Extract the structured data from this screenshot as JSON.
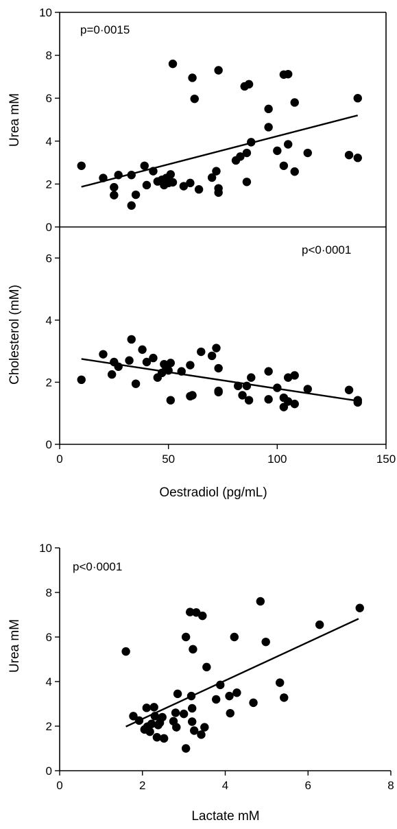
{
  "chart_data": [
    {
      "type": "scatter",
      "ylabel": "Urea mM",
      "xlabel": "",
      "annotation": "p=0·0015",
      "xlim": [
        0,
        150
      ],
      "ylim": [
        0,
        10
      ],
      "yticks": [
        0,
        2,
        4,
        6,
        8,
        10
      ],
      "xticks": [],
      "x_tick_labels": false,
      "trendline": [
        [
          10,
          1.87
        ],
        [
          137,
          5.2
        ]
      ],
      "points": [
        [
          10,
          2.85
        ],
        [
          20,
          2.28
        ],
        [
          25,
          1.85
        ],
        [
          25,
          1.48
        ],
        [
          27,
          2.42
        ],
        [
          33,
          2.42
        ],
        [
          33,
          1.0
        ],
        [
          35,
          1.5
        ],
        [
          39,
          2.85
        ],
        [
          40,
          1.95
        ],
        [
          43,
          2.6
        ],
        [
          45,
          2.12
        ],
        [
          47,
          2.2
        ],
        [
          48,
          1.95
        ],
        [
          49,
          2.28
        ],
        [
          50,
          2.05
        ],
        [
          51,
          2.45
        ],
        [
          52,
          7.6
        ],
        [
          52,
          2.08
        ],
        [
          57,
          1.9
        ],
        [
          60,
          2.05
        ],
        [
          61,
          6.95
        ],
        [
          62,
          5.97
        ],
        [
          64,
          1.75
        ],
        [
          70,
          2.3
        ],
        [
          72,
          2.6
        ],
        [
          73,
          7.3
        ],
        [
          73,
          1.8
        ],
        [
          73,
          1.6
        ],
        [
          81,
          3.1
        ],
        [
          83,
          3.28
        ],
        [
          85,
          6.55
        ],
        [
          86,
          3.45
        ],
        [
          86,
          2.1
        ],
        [
          87,
          6.65
        ],
        [
          88,
          3.95
        ],
        [
          96,
          5.5
        ],
        [
          96,
          4.65
        ],
        [
          100,
          3.55
        ],
        [
          103,
          7.1
        ],
        [
          103,
          2.85
        ],
        [
          105,
          3.85
        ],
        [
          105,
          7.12
        ],
        [
          108,
          5.8
        ],
        [
          108,
          2.58
        ],
        [
          114,
          3.45
        ],
        [
          133,
          3.35
        ],
        [
          137,
          3.22
        ],
        [
          137,
          6.0
        ]
      ]
    },
    {
      "type": "scatter",
      "ylabel": "Cholesterol (mM)",
      "xlabel": "Oestradiol (pg/mL)",
      "annotation": "p<0·0001",
      "xlim": [
        0,
        150
      ],
      "ylim": [
        0,
        7
      ],
      "yticks": [
        0,
        2,
        4,
        6
      ],
      "xticks": [
        0,
        50,
        100,
        150
      ],
      "x_tick_labels": true,
      "trendline": [
        [
          10,
          2.75
        ],
        [
          137,
          1.4
        ]
      ],
      "points": [
        [
          10,
          2.08
        ],
        [
          20,
          2.9
        ],
        [
          24,
          2.25
        ],
        [
          25,
          2.65
        ],
        [
          27,
          2.5
        ],
        [
          32,
          2.7
        ],
        [
          33,
          3.38
        ],
        [
          35,
          1.95
        ],
        [
          38,
          3.05
        ],
        [
          40,
          2.65
        ],
        [
          43,
          2.78
        ],
        [
          45,
          2.15
        ],
        [
          47,
          2.3
        ],
        [
          48,
          2.58
        ],
        [
          49,
          2.45
        ],
        [
          50,
          2.38
        ],
        [
          51,
          2.62
        ],
        [
          51,
          1.42
        ],
        [
          56,
          2.35
        ],
        [
          60,
          2.55
        ],
        [
          60,
          1.55
        ],
        [
          61,
          1.58
        ],
        [
          65,
          2.98
        ],
        [
          70,
          2.85
        ],
        [
          72,
          3.1
        ],
        [
          73,
          1.68
        ],
        [
          73,
          2.45
        ],
        [
          73,
          1.72
        ],
        [
          82,
          1.88
        ],
        [
          84,
          1.58
        ],
        [
          86,
          1.88
        ],
        [
          87,
          1.42
        ],
        [
          88,
          2.15
        ],
        [
          96,
          2.35
        ],
        [
          96,
          1.45
        ],
        [
          100,
          1.82
        ],
        [
          103,
          1.5
        ],
        [
          103,
          1.2
        ],
        [
          105,
          2.15
        ],
        [
          105,
          1.38
        ],
        [
          108,
          2.22
        ],
        [
          108,
          1.3
        ],
        [
          114,
          1.78
        ],
        [
          133,
          1.75
        ],
        [
          137,
          1.42
        ],
        [
          137,
          1.35
        ]
      ]
    },
    {
      "type": "scatter",
      "ylabel": "Urea mM",
      "xlabel": "Lactate mM",
      "annotation": "p<0·0001",
      "xlim": [
        0,
        8
      ],
      "ylim": [
        0,
        10
      ],
      "yticks": [
        0,
        2,
        4,
        6,
        8,
        10
      ],
      "xticks": [
        0,
        2,
        4,
        6,
        8
      ],
      "x_tick_labels": true,
      "trendline": [
        [
          1.6,
          1.98
        ],
        [
          7.22,
          6.82
        ]
      ],
      "points": [
        [
          1.6,
          5.35
        ],
        [
          1.78,
          2.45
        ],
        [
          1.92,
          2.25
        ],
        [
          2.05,
          1.85
        ],
        [
          2.1,
          2.82
        ],
        [
          2.12,
          1.98
        ],
        [
          2.18,
          1.75
        ],
        [
          2.22,
          2.1
        ],
        [
          2.28,
          2.85
        ],
        [
          2.3,
          2.45
        ],
        [
          2.35,
          1.5
        ],
        [
          2.38,
          2.05
        ],
        [
          2.42,
          2.15
        ],
        [
          2.48,
          2.4
        ],
        [
          2.52,
          1.45
        ],
        [
          2.75,
          2.22
        ],
        [
          2.8,
          2.6
        ],
        [
          2.82,
          1.95
        ],
        [
          2.85,
          3.45
        ],
        [
          3.0,
          2.55
        ],
        [
          3.05,
          6.0
        ],
        [
          3.05,
          1.0
        ],
        [
          3.15,
          7.12
        ],
        [
          3.18,
          3.35
        ],
        [
          3.2,
          2.8
        ],
        [
          3.2,
          2.2
        ],
        [
          3.22,
          5.45
        ],
        [
          3.25,
          1.8
        ],
        [
          3.3,
          7.1
        ],
        [
          3.42,
          1.62
        ],
        [
          3.45,
          6.95
        ],
        [
          3.5,
          1.95
        ],
        [
          3.55,
          4.65
        ],
        [
          3.78,
          3.2
        ],
        [
          3.88,
          3.85
        ],
        [
          4.1,
          3.35
        ],
        [
          4.12,
          2.58
        ],
        [
          4.22,
          6.0
        ],
        [
          4.28,
          3.5
        ],
        [
          4.68,
          3.05
        ],
        [
          4.85,
          7.6
        ],
        [
          4.98,
          5.78
        ],
        [
          5.32,
          3.95
        ],
        [
          5.42,
          3.28
        ],
        [
          6.28,
          6.55
        ],
        [
          7.25,
          7.3
        ]
      ]
    }
  ]
}
